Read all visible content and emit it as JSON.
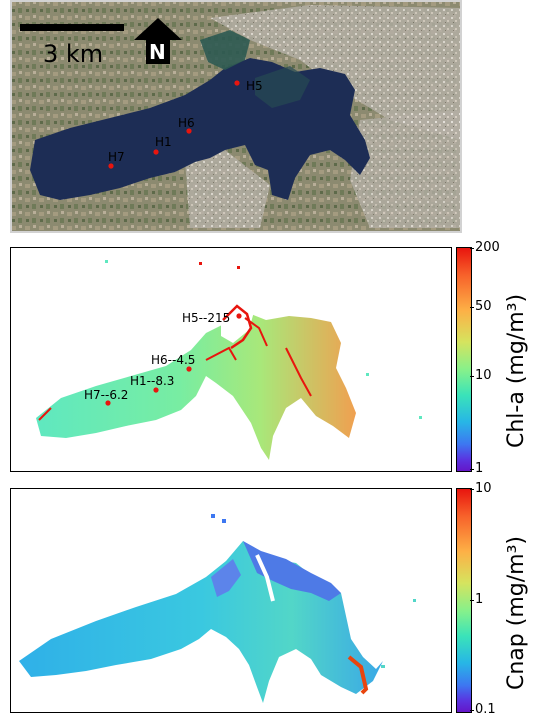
{
  "scale_bar": {
    "label": "3 km"
  },
  "north_arrow": {
    "label": "N"
  },
  "satellite": {
    "sites": [
      {
        "id": "H5",
        "label": "H5"
      },
      {
        "id": "H6",
        "label": "H6"
      },
      {
        "id": "H1",
        "label": "H1"
      },
      {
        "id": "H7",
        "label": "H7"
      }
    ]
  },
  "chl_map": {
    "colorbar_label": "Chl-a (mg/m³)",
    "ticks": [
      "200",
      "50",
      "10",
      "1"
    ],
    "annotations": [
      {
        "site": "H5",
        "label": "H5--215"
      },
      {
        "site": "H6",
        "label": "H6--4.5"
      },
      {
        "site": "H1",
        "label": "H1--8.3"
      },
      {
        "site": "H7",
        "label": "H7--6.2"
      }
    ]
  },
  "cnap_map": {
    "colorbar_label": "Cnap (mg/m³)",
    "ticks": [
      "10",
      "1",
      "0.1"
    ]
  },
  "colors": {
    "water_dark": "#1d2d55",
    "marker": "#e8150e"
  }
}
